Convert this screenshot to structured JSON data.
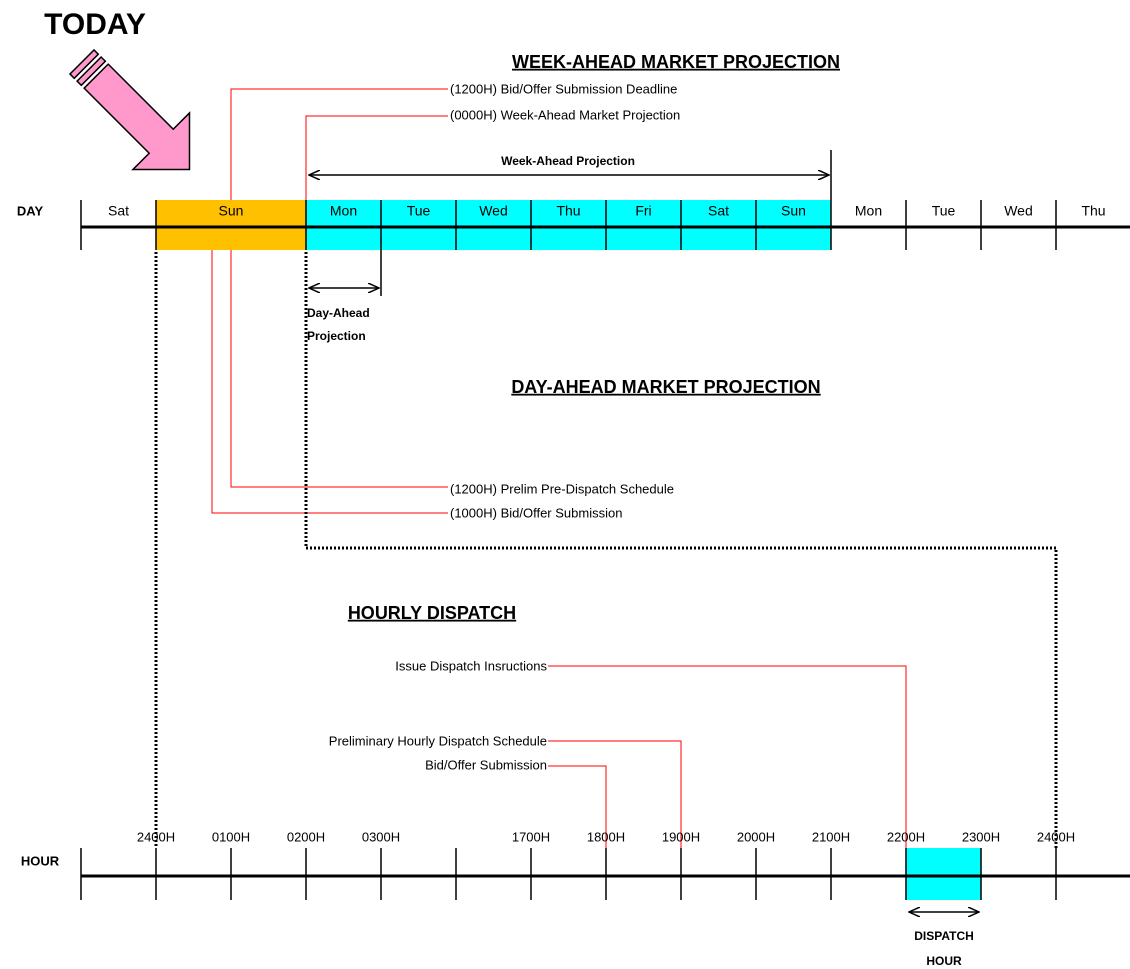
{
  "today": "TODAY",
  "week_ahead": {
    "title": "WEEK-AHEAD MARKET PROJECTION",
    "annotations": [
      "(1200H) Bid/Offer Submission Deadline",
      "(0000H) Week-Ahead Market Projection"
    ],
    "span_label": "Week-Ahead Projection"
  },
  "day_row": {
    "label": "DAY",
    "days": [
      "Sat",
      "Sun",
      "Mon",
      "Tue",
      "Wed",
      "Thu",
      "Fri",
      "Sat",
      "Sun",
      "Mon",
      "Tue",
      "Wed",
      "Thu"
    ]
  },
  "day_ahead": {
    "span_label": [
      "Day-Ahead",
      "Projection"
    ],
    "title": "DAY-AHEAD MARKET PROJECTION",
    "annotations": [
      "(1200H) Prelim Pre-Dispatch Schedule",
      "(1000H) Bid/Offer Submission"
    ]
  },
  "hourly": {
    "title": "HOURLY DISPATCH",
    "annotations": [
      "Issue Dispatch Insructions",
      "Preliminary Hourly Dispatch Schedule",
      "Bid/Offer Submission"
    ]
  },
  "hour_row": {
    "label": "HOUR",
    "hours": [
      "2400H",
      "0100H",
      "0200H",
      "0300H",
      null,
      "1700H",
      "1800H",
      "1900H",
      "2000H",
      "2100H",
      "2200H",
      "2300H",
      "2400H"
    ]
  },
  "dispatch_hour": [
    "DISPATCH",
    "HOUR"
  ]
}
